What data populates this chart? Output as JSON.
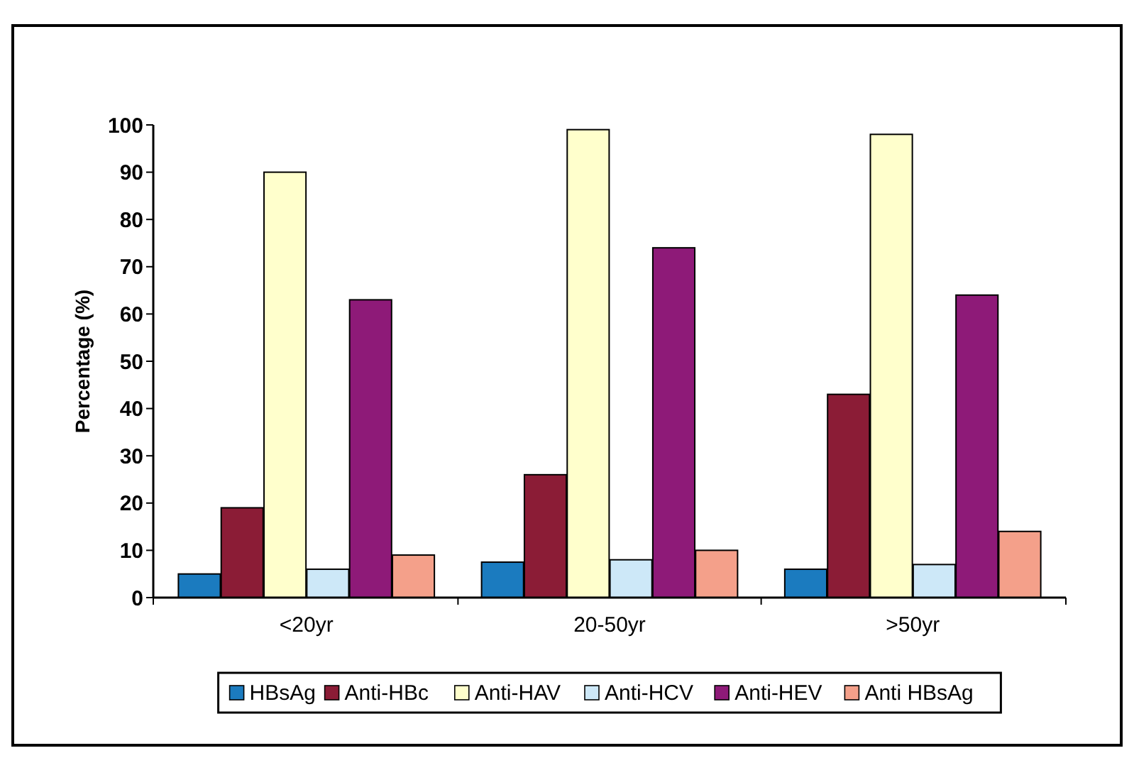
{
  "chart_data": {
    "type": "bar",
    "ylabel": "Percentage (%)",
    "categories": [
      "<20yr",
      "20-50yr",
      ">50yr"
    ],
    "series": [
      {
        "name": "HBsAg",
        "color": "#1b7bbf",
        "values": [
          5,
          7.5,
          6
        ]
      },
      {
        "name": "Anti-HBc",
        "color": "#8b1c36",
        "values": [
          19,
          26,
          43
        ]
      },
      {
        "name": "Anti-HAV",
        "color": "#ffffcc",
        "values": [
          90,
          99,
          98
        ]
      },
      {
        "name": "Anti-HCV",
        "color": "#cde8f8",
        "values": [
          6,
          8,
          7
        ]
      },
      {
        "name": "Anti-HEV",
        "color": "#8e1a78",
        "values": [
          63,
          74,
          64
        ]
      },
      {
        "name": "Anti HBsAg",
        "color": "#f4a08a",
        "values": [
          9,
          10,
          14
        ]
      }
    ],
    "ylim": [
      0,
      100
    ],
    "yticks": [
      0,
      10,
      20,
      30,
      40,
      50,
      60,
      70,
      80,
      90,
      100
    ],
    "grid": false,
    "legend": "bottom"
  }
}
